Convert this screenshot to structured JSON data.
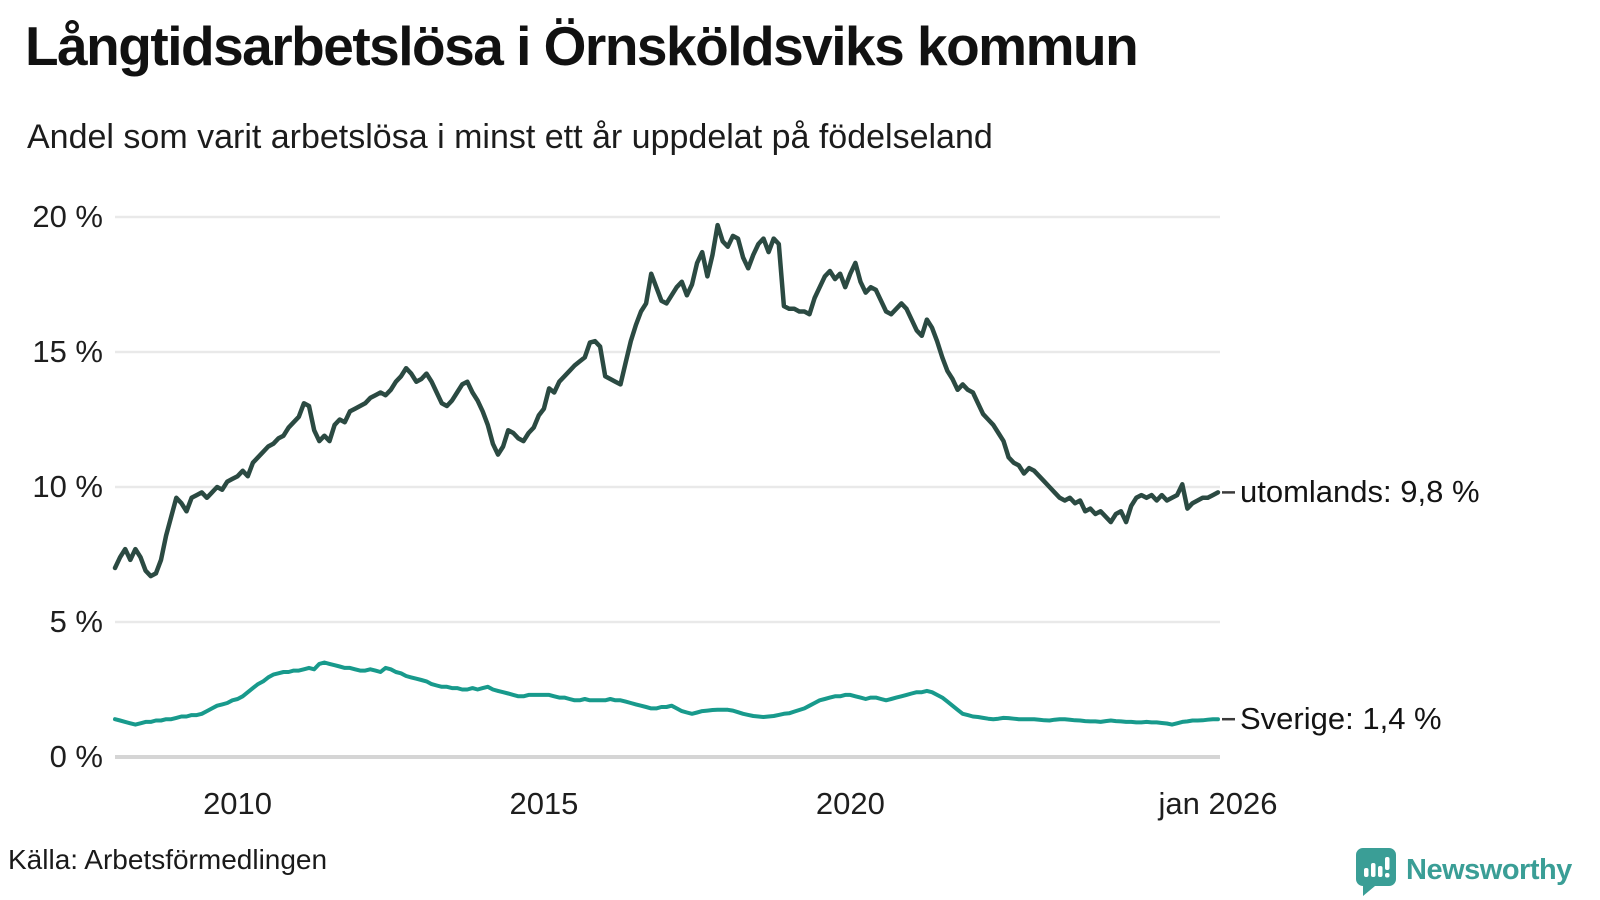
{
  "header": {
    "title": "Långtidsarbetslösa i Örnsköldsviks kommun",
    "subtitle": "Andel som varit arbetslösa i minst ett år uppdelat på födelseland"
  },
  "footer": {
    "source": "Källa: Arbetsförmedlingen",
    "brand": "Newsworthy"
  },
  "colors": {
    "utomlands_line": "#2b4a42",
    "sverige_line": "#189a8c",
    "gridline": "#e9e9e9",
    "zeroline": "#d5d5d5",
    "label_dash": "#3a3a3a",
    "brand_teal": "#3a9e96",
    "text": "#1a1a1a"
  },
  "chart_data": {
    "type": "line",
    "title": "Långtidsarbetslösa i Örnsköldsviks kommun",
    "subtitle": "Andel som varit arbetslösa i minst ett år uppdelat på födelseland",
    "unit": "%",
    "grid": "horizontal",
    "legend_position": "end-of-line-labels",
    "x_axis": {
      "start_year": 2008,
      "end_year": 2026,
      "interval": "monthly",
      "ticks": [
        {
          "label": "2010",
          "year": 2010
        },
        {
          "label": "2015",
          "year": 2015
        },
        {
          "label": "2020",
          "year": 2020
        },
        {
          "label": "jan 2026",
          "year": 2026
        }
      ]
    },
    "y_axis": {
      "min": 0,
      "max": 20,
      "ticks": [
        {
          "label": "20 %",
          "value": 20
        },
        {
          "label": "15 %",
          "value": 15
        },
        {
          "label": "10 %",
          "value": 10
        },
        {
          "label": "5 %",
          "value": 5
        },
        {
          "label": "0 %",
          "value": 0
        }
      ]
    },
    "series": [
      {
        "name": "utomlands",
        "end_label": "utomlands: 9,8 %",
        "end_value": 9.8,
        "color": "#2b4a42",
        "values": [
          7.0,
          7.4,
          7.7,
          7.3,
          7.7,
          7.4,
          6.9,
          6.7,
          6.8,
          7.3,
          8.2,
          8.9,
          9.6,
          9.4,
          9.1,
          9.6,
          9.7,
          9.8,
          9.6,
          9.8,
          10.0,
          9.9,
          10.2,
          10.3,
          10.4,
          10.6,
          10.4,
          10.9,
          11.1,
          11.3,
          11.5,
          11.6,
          11.8,
          11.9,
          12.2,
          12.4,
          12.6,
          13.1,
          13.0,
          12.1,
          11.7,
          11.9,
          11.7,
          12.3,
          12.5,
          12.4,
          12.8,
          12.9,
          13.0,
          13.1,
          13.3,
          13.4,
          13.5,
          13.4,
          13.6,
          13.9,
          14.1,
          14.4,
          14.2,
          13.9,
          14.0,
          14.2,
          13.9,
          13.5,
          13.1,
          13.0,
          13.2,
          13.5,
          13.8,
          13.9,
          13.5,
          13.2,
          12.8,
          12.3,
          11.6,
          11.2,
          11.5,
          12.1,
          12.0,
          11.8,
          11.7,
          12.0,
          12.2,
          12.65,
          12.9,
          13.65,
          13.5,
          13.9,
          14.1,
          14.3,
          14.5,
          14.65,
          14.8,
          15.35,
          15.4,
          15.2,
          14.1,
          14.0,
          13.9,
          13.8,
          14.6,
          15.4,
          16.0,
          16.5,
          16.8,
          17.9,
          17.4,
          16.9,
          16.8,
          17.1,
          17.4,
          17.6,
          17.1,
          17.5,
          18.3,
          18.7,
          17.8,
          18.6,
          19.7,
          19.1,
          18.9,
          19.3,
          19.2,
          18.5,
          18.1,
          18.6,
          19.0,
          19.2,
          18.7,
          19.2,
          19.0,
          16.7,
          16.6,
          16.6,
          16.5,
          16.5,
          16.4,
          17.0,
          17.4,
          17.8,
          18.0,
          17.7,
          17.9,
          17.4,
          17.9,
          18.3,
          17.6,
          17.2,
          17.4,
          17.3,
          16.9,
          16.5,
          16.4,
          16.6,
          16.8,
          16.6,
          16.2,
          15.8,
          15.6,
          16.2,
          15.9,
          15.4,
          14.8,
          14.3,
          14.0,
          13.6,
          13.8,
          13.6,
          13.5,
          13.1,
          12.7,
          12.5,
          12.3,
          12.0,
          11.7,
          11.1,
          10.9,
          10.8,
          10.5,
          10.7,
          10.6,
          10.4,
          10.2,
          10.0,
          9.8,
          9.6,
          9.5,
          9.6,
          9.4,
          9.5,
          9.1,
          9.2,
          9.0,
          9.1,
          8.9,
          8.7,
          9.0,
          9.1,
          8.7,
          9.3,
          9.6,
          9.7,
          9.6,
          9.7,
          9.5,
          9.7,
          9.5,
          9.6,
          9.7,
          10.1,
          9.2,
          9.4,
          9.5,
          9.6,
          9.6,
          9.7,
          9.8
        ]
      },
      {
        "name": "Sverige",
        "end_label": "Sverige: 1,4 %",
        "end_value": 1.4,
        "color": "#189a8c",
        "values": [
          1.4,
          1.35,
          1.3,
          1.25,
          1.2,
          1.25,
          1.3,
          1.3,
          1.35,
          1.35,
          1.4,
          1.4,
          1.45,
          1.5,
          1.5,
          1.55,
          1.55,
          1.6,
          1.7,
          1.8,
          1.9,
          1.95,
          2.0,
          2.1,
          2.15,
          2.25,
          2.4,
          2.55,
          2.7,
          2.8,
          2.95,
          3.05,
          3.1,
          3.15,
          3.15,
          3.2,
          3.2,
          3.25,
          3.3,
          3.25,
          3.45,
          3.5,
          3.45,
          3.4,
          3.35,
          3.3,
          3.3,
          3.25,
          3.2,
          3.2,
          3.25,
          3.2,
          3.15,
          3.3,
          3.25,
          3.15,
          3.1,
          3.0,
          2.95,
          2.9,
          2.85,
          2.8,
          2.7,
          2.65,
          2.6,
          2.6,
          2.55,
          2.55,
          2.5,
          2.5,
          2.55,
          2.5,
          2.55,
          2.6,
          2.5,
          2.45,
          2.4,
          2.35,
          2.3,
          2.25,
          2.25,
          2.3,
          2.3,
          2.3,
          2.3,
          2.3,
          2.25,
          2.2,
          2.2,
          2.15,
          2.1,
          2.1,
          2.15,
          2.1,
          2.1,
          2.1,
          2.1,
          2.15,
          2.1,
          2.1,
          2.05,
          2.0,
          1.95,
          1.9,
          1.85,
          1.8,
          1.8,
          1.85,
          1.85,
          1.9,
          1.8,
          1.7,
          1.65,
          1.6,
          1.65,
          1.7,
          1.72,
          1.74,
          1.75,
          1.75,
          1.75,
          1.72,
          1.66,
          1.6,
          1.56,
          1.52,
          1.5,
          1.48,
          1.5,
          1.52,
          1.56,
          1.6,
          1.62,
          1.68,
          1.74,
          1.8,
          1.9,
          2.0,
          2.1,
          2.15,
          2.2,
          2.25,
          2.25,
          2.3,
          2.3,
          2.25,
          2.2,
          2.15,
          2.2,
          2.2,
          2.15,
          2.1,
          2.15,
          2.2,
          2.25,
          2.3,
          2.35,
          2.4,
          2.4,
          2.45,
          2.4,
          2.3,
          2.2,
          2.05,
          1.9,
          1.75,
          1.6,
          1.55,
          1.5,
          1.48,
          1.45,
          1.42,
          1.4,
          1.42,
          1.45,
          1.44,
          1.42,
          1.4,
          1.4,
          1.4,
          1.4,
          1.38,
          1.36,
          1.35,
          1.38,
          1.4,
          1.4,
          1.38,
          1.36,
          1.35,
          1.33,
          1.32,
          1.32,
          1.3,
          1.33,
          1.35,
          1.33,
          1.32,
          1.3,
          1.3,
          1.28,
          1.28,
          1.3,
          1.28,
          1.28,
          1.26,
          1.24,
          1.2,
          1.25,
          1.3,
          1.32,
          1.35,
          1.35,
          1.36,
          1.38,
          1.4,
          1.4
        ]
      }
    ]
  }
}
